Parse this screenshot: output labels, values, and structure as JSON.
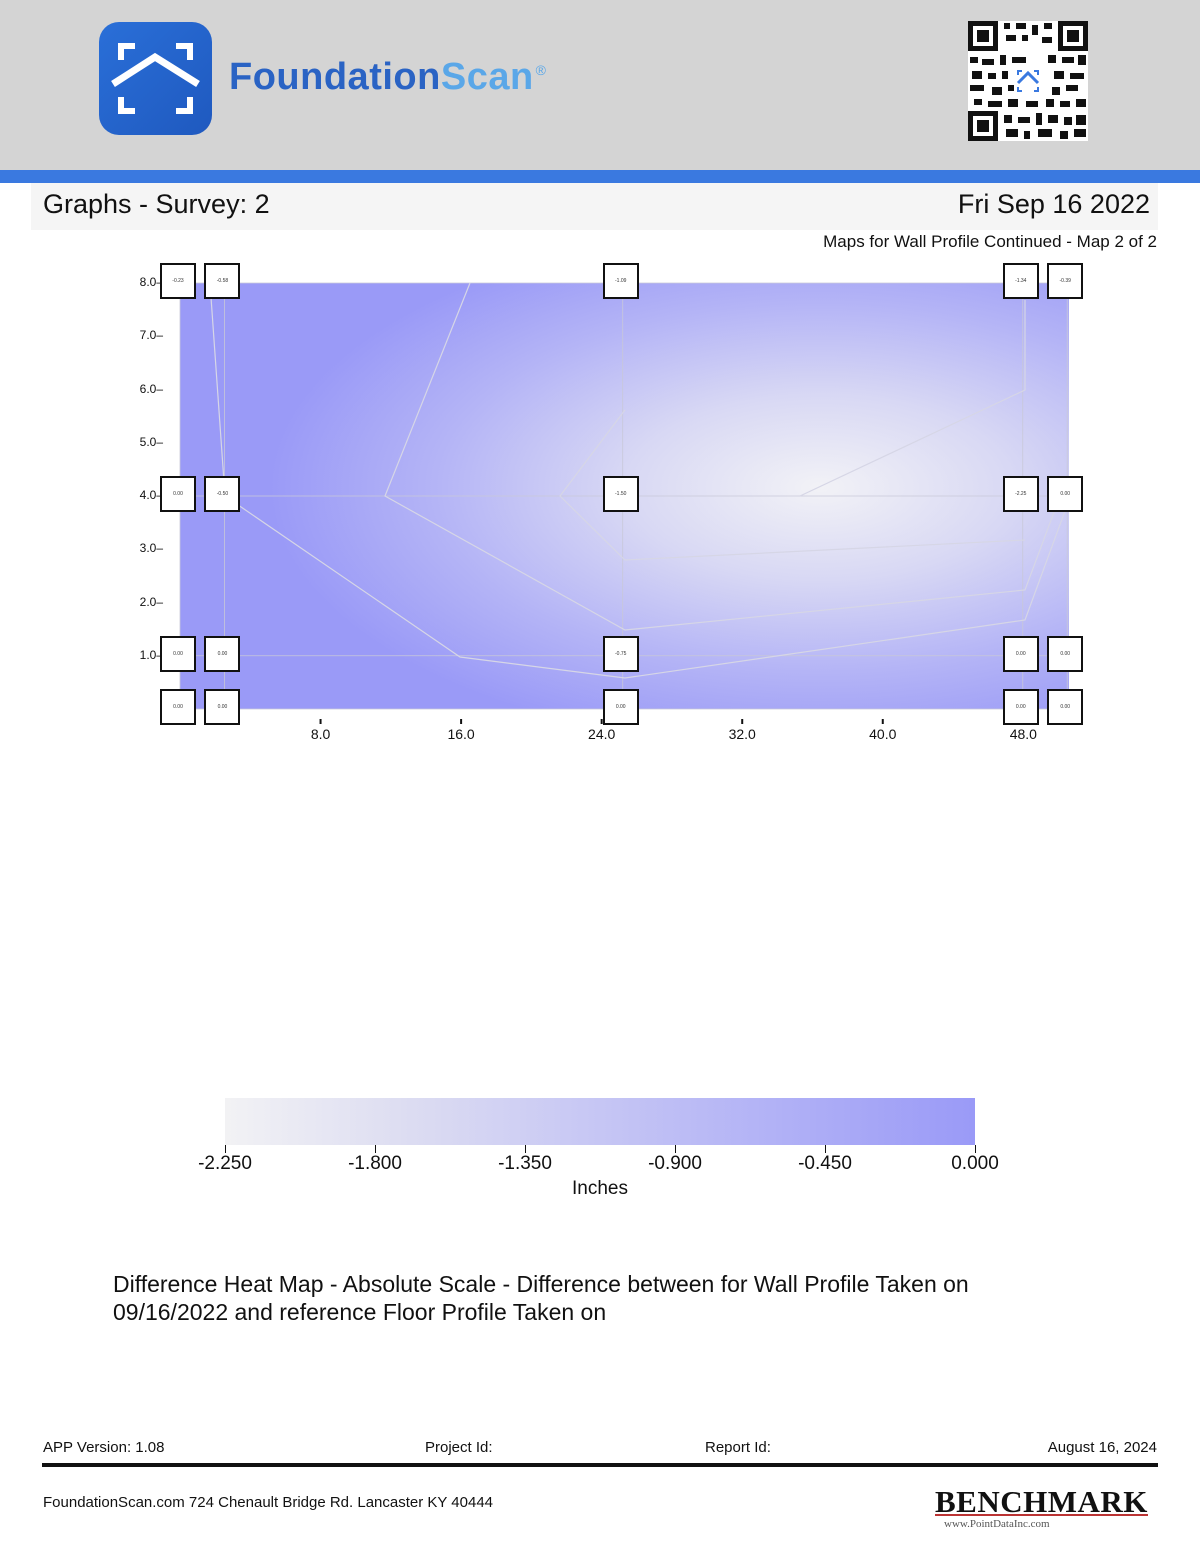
{
  "header": {
    "brand_part1": "Foundation",
    "brand_part2": "Scan",
    "registered": "®",
    "logo_icon": "house-scan-icon",
    "qr_icon": "qr-code-icon"
  },
  "title_bar": {
    "title": "Graphs - Survey: 2",
    "date": "Fri Sep 16 2022"
  },
  "map_subtitle": "Maps for Wall Profile Continued - Map 2 of 2",
  "chart_data": {
    "type": "heatmap",
    "title": "",
    "xlabel": "",
    "ylabel": "",
    "x_ticks": [
      "8.0",
      "16.0",
      "24.0",
      "32.0",
      "40.0",
      "48.0"
    ],
    "y_ticks": [
      "8.0",
      "7.0",
      "6.0",
      "5.0",
      "4.0",
      "3.0",
      "2.0",
      "1.0"
    ],
    "xlim": [
      0,
      50
    ],
    "ylim": [
      0,
      8
    ],
    "grid": true,
    "points": [
      {
        "x": 0,
        "y": 8,
        "label": "-0.23"
      },
      {
        "x": 2.5,
        "y": 8,
        "label": "-0.58"
      },
      {
        "x": 24.9,
        "y": 8,
        "label": "-1.09"
      },
      {
        "x": 47.4,
        "y": 8,
        "label": "-1.34"
      },
      {
        "x": 49.9,
        "y": 8,
        "label": "-0.39"
      },
      {
        "x": 0,
        "y": 4,
        "label": "0.00"
      },
      {
        "x": 2.5,
        "y": 4,
        "label": "-0.50"
      },
      {
        "x": 24.9,
        "y": 4,
        "label": "-1.50"
      },
      {
        "x": 47.4,
        "y": 4,
        "label": "-2.25"
      },
      {
        "x": 49.9,
        "y": 4,
        "label": "0.00"
      },
      {
        "x": 0,
        "y": 1,
        "label": "0.00"
      },
      {
        "x": 2.5,
        "y": 1,
        "label": "0.00"
      },
      {
        "x": 24.9,
        "y": 1,
        "label": "-0.75"
      },
      {
        "x": 47.4,
        "y": 1,
        "label": "0.00"
      },
      {
        "x": 49.9,
        "y": 1,
        "label": "0.00"
      },
      {
        "x": 0,
        "y": 0,
        "label": "0.00"
      },
      {
        "x": 2.5,
        "y": 0,
        "label": "0.00"
      },
      {
        "x": 24.9,
        "y": 0,
        "label": "0.00"
      },
      {
        "x": 47.4,
        "y": 0,
        "label": "0.00"
      },
      {
        "x": 49.9,
        "y": 0,
        "label": "0.00"
      }
    ],
    "colorbar": {
      "ticks": [
        "-2.250",
        "-1.800",
        "-1.350",
        "-0.900",
        "-0.450",
        "0.000"
      ],
      "range": [
        -2.25,
        0
      ],
      "label": "Inches",
      "low_color": "#f2f2f4",
      "high_color": "#9a9af7"
    }
  },
  "caption": "Difference Heat Map - Absolute Scale - Difference between for Wall Profile Taken on 09/16/2022 and reference Floor Profile Taken on",
  "footer": {
    "app_version": "APP Version: 1.08",
    "project_id": "Project Id:",
    "report_id": "Report Id:",
    "report_date": "August 16, 2024",
    "address": "FoundationScan.com 724 Chenault Bridge Rd. Lancaster KY 40444",
    "benchmark_logo": "BENCHMARK",
    "benchmark_url": "www.PointDataInc.com"
  }
}
